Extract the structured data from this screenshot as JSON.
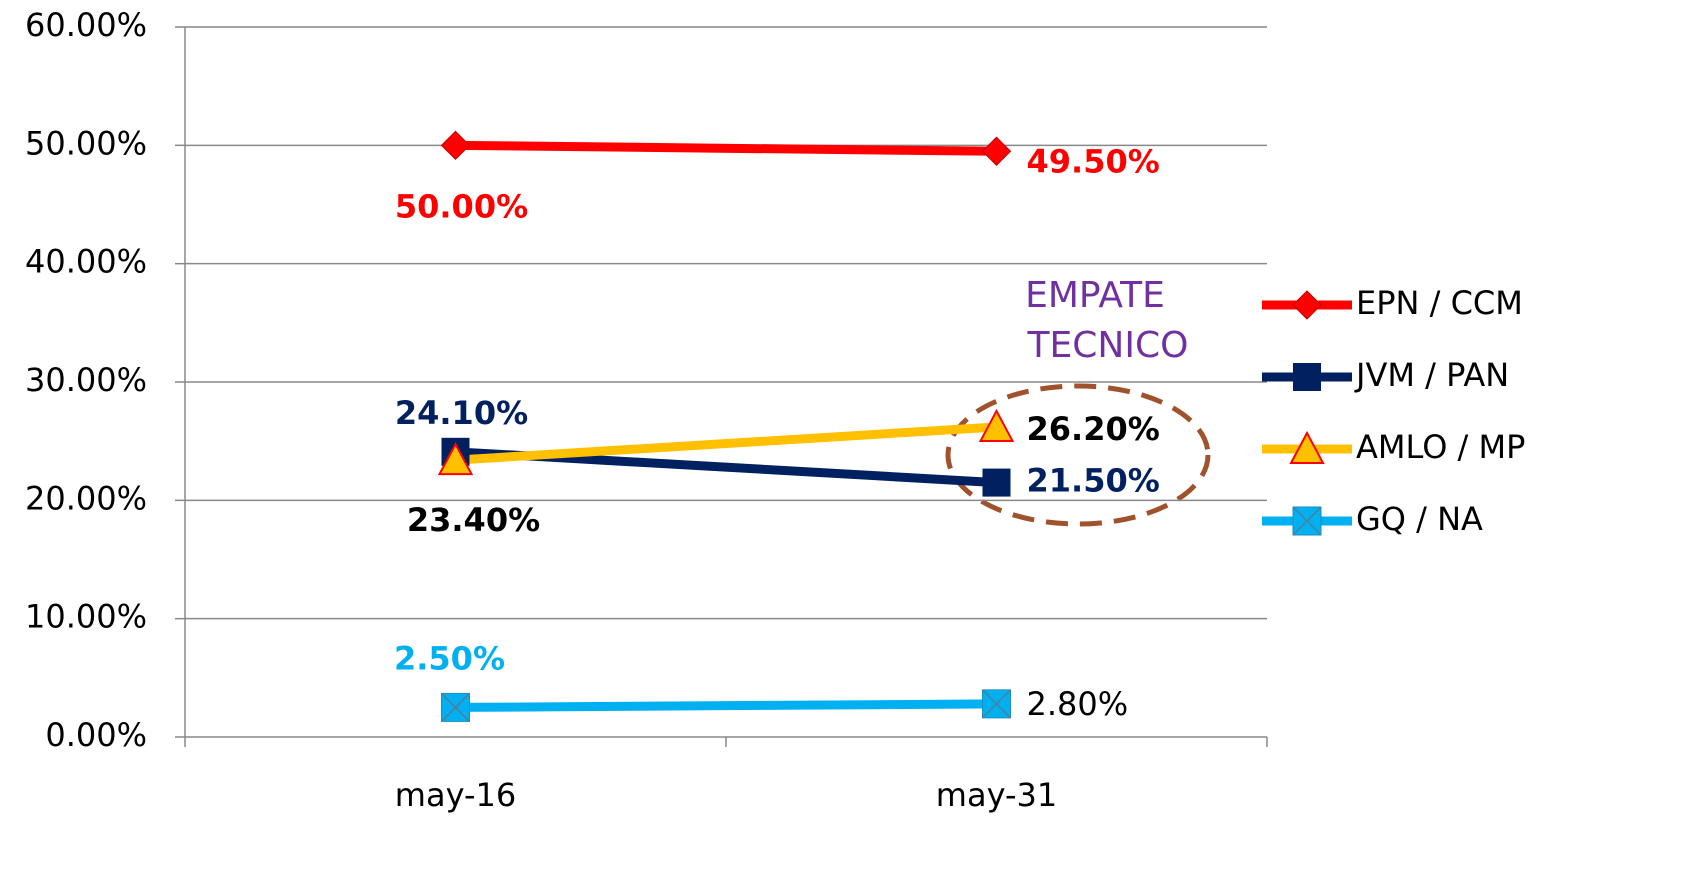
{
  "chart_data": {
    "type": "line",
    "categories": [
      "may-16",
      "may-31"
    ],
    "series": [
      {
        "name": "EPN / CCM",
        "color": "#ff0000",
        "values": [
          50.0,
          49.5
        ],
        "value_labels": [
          "50.00%",
          "49.50%"
        ]
      },
      {
        "name": "JVM / PAN",
        "color": "#002060",
        "values": [
          24.1,
          21.5
        ],
        "value_labels": [
          "24.10%",
          "21.50%"
        ]
      },
      {
        "name": "AMLO / MP",
        "color": "#ffc000",
        "values": [
          23.4,
          26.2
        ],
        "value_labels": [
          "23.40%",
          "26.20%"
        ]
      },
      {
        "name": "GQ / NA",
        "color": "#00b0f0",
        "values": [
          2.5,
          2.8
        ],
        "value_labels": [
          "2.50%",
          "2.80%"
        ]
      }
    ],
    "ylim": [
      0,
      60
    ],
    "yticks": [
      {
        "value": 0,
        "label": "0.00%"
      },
      {
        "value": 10,
        "label": "10.00%"
      },
      {
        "value": 20,
        "label": "20.00%"
      },
      {
        "value": 30,
        "label": "30.00%"
      },
      {
        "value": 40,
        "label": "40.00%"
      },
      {
        "value": 50,
        "label": "50.00%"
      },
      {
        "value": 60,
        "label": "60.00%"
      }
    ],
    "grid": true,
    "legend": "right",
    "annotation": [
      "EMPATE",
      "TECNICO"
    ]
  }
}
